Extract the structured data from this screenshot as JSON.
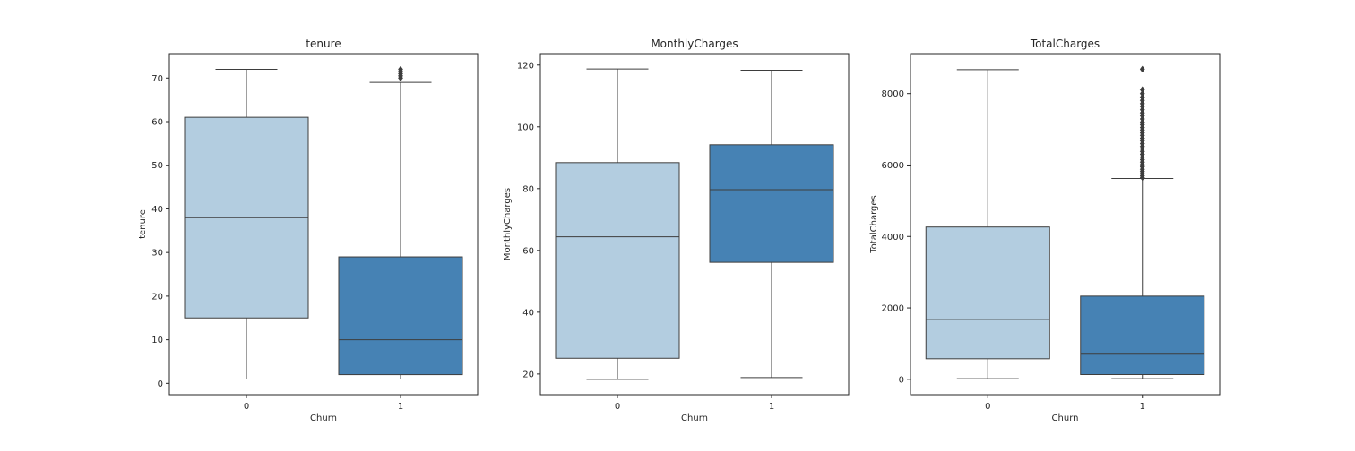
{
  "chart_data": [
    {
      "type": "box",
      "title": "tenure",
      "xlabel": "Churn",
      "ylabel": "tenure",
      "categories": [
        "0",
        "1"
      ],
      "ylim": [
        -2.6,
        75.6
      ],
      "yticks": [
        0,
        10,
        20,
        30,
        40,
        50,
        60,
        70
      ],
      "boxes": [
        {
          "category": "0",
          "whisker_low": 1,
          "q1": 15,
          "median": 38,
          "q3": 61,
          "whisker_high": 72,
          "color": "#b3cde0",
          "outliers": []
        },
        {
          "category": "1",
          "whisker_low": 1,
          "q1": 2,
          "median": 10,
          "q3": 29,
          "whisker_high": 69,
          "color": "#4682b4",
          "outliers": [
            70,
            70.5,
            71,
            71.5,
            72
          ]
        }
      ]
    },
    {
      "type": "box",
      "title": "MonthlyCharges",
      "xlabel": "Churn",
      "ylabel": "MonthlyCharges",
      "categories": [
        "0",
        "1"
      ],
      "ylim": [
        13.3,
        123.7
      ],
      "yticks": [
        20,
        40,
        60,
        80,
        100,
        120
      ],
      "boxes": [
        {
          "category": "0",
          "whisker_low": 18.25,
          "q1": 25.1,
          "median": 64.4,
          "q3": 88.4,
          "whisker_high": 118.75,
          "color": "#b3cde0",
          "outliers": []
        },
        {
          "category": "1",
          "whisker_low": 18.85,
          "q1": 56.15,
          "median": 79.65,
          "q3": 94.2,
          "whisker_high": 118.35,
          "color": "#4682b4",
          "outliers": []
        }
      ]
    },
    {
      "type": "box",
      "title": "TotalCharges",
      "xlabel": "Churn",
      "ylabel": "TotalCharges",
      "categories": [
        "0",
        "1"
      ],
      "ylim": [
        -430,
        9120
      ],
      "yticks": [
        0,
        2000,
        4000,
        6000,
        8000
      ],
      "boxes": [
        {
          "category": "0",
          "whisker_low": 18.8,
          "q1": 577,
          "median": 1680,
          "q3": 4265,
          "whisker_high": 8672,
          "color": "#b3cde0",
          "outliers": []
        },
        {
          "category": "1",
          "whisker_low": 18.85,
          "q1": 134,
          "median": 704,
          "q3": 2331,
          "whisker_high": 5624,
          "color": "#4682b4",
          "outliers": [
            5650,
            5700,
            5760,
            5820,
            5880,
            5950,
            6010,
            6080,
            6150,
            6220,
            6300,
            6380,
            6450,
            6520,
            6600,
            6680,
            6750,
            6830,
            6900,
            6980,
            7050,
            7130,
            7200,
            7290,
            7380,
            7460,
            7550,
            7640,
            7720,
            7810,
            7900,
            8000,
            8110,
            8684
          ]
        }
      ]
    }
  ]
}
